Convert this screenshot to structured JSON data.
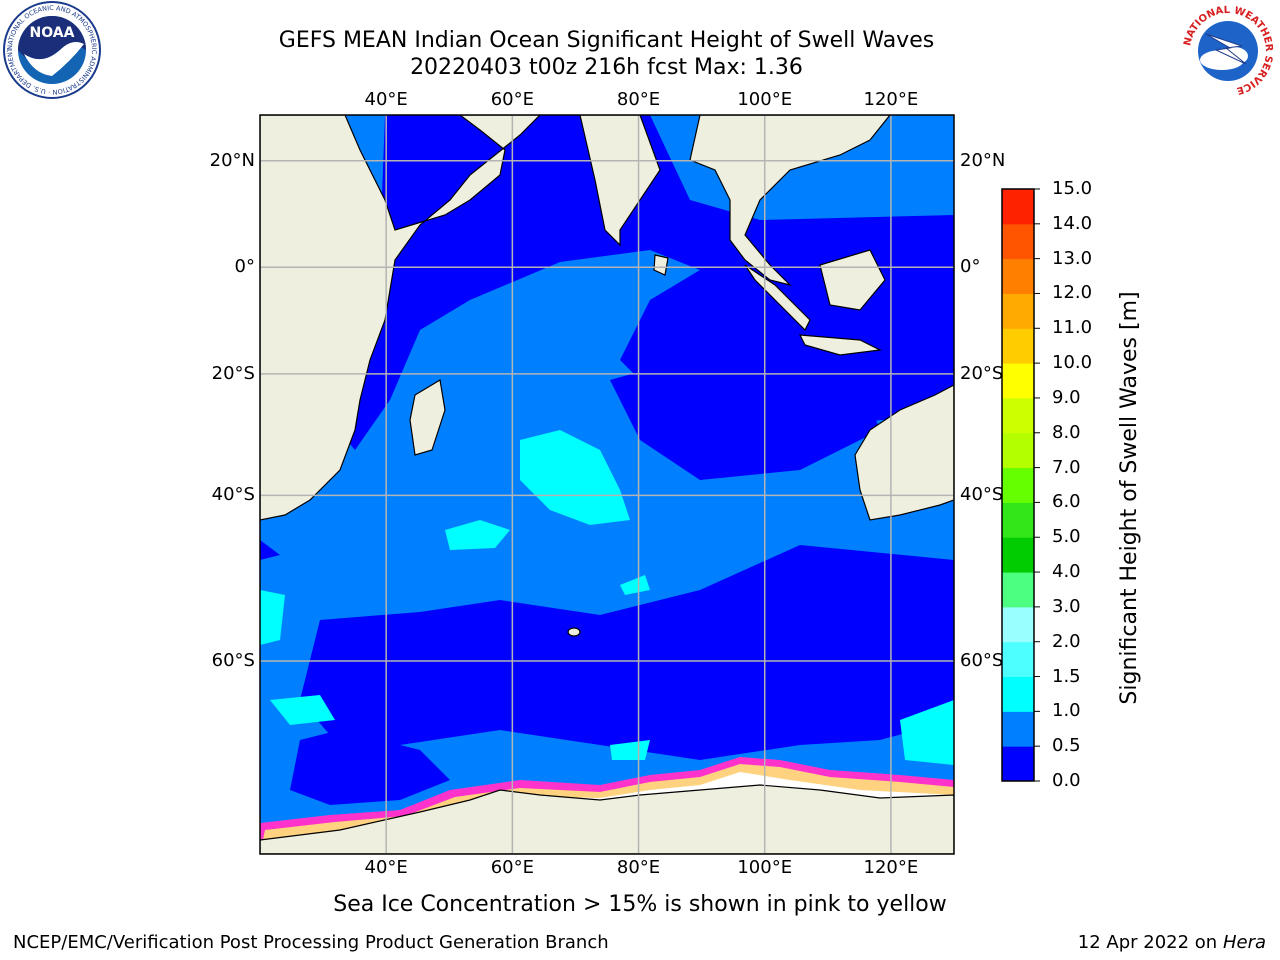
{
  "header": {
    "title_line1": "GEFS MEAN Indian Ocean Significant Height of Swell Waves",
    "title_line2": "20220403 t00z 216h fcst   Max: 1.36"
  },
  "logos": {
    "left": {
      "name": "noaa-logo",
      "text": "NOAA",
      "ring_text": "NATIONAL OCEANIC AND ATMOSPHERIC ADMINISTRATION · U.S. DEPARTMENT OF COMMERCE"
    },
    "right": {
      "name": "nws-logo",
      "ring_text": "NATIONAL WEATHER SERVICE"
    }
  },
  "map": {
    "lon_ticks": [
      "40°E",
      "60°E",
      "80°E",
      "100°E",
      "120°E"
    ],
    "lat_ticks": [
      "20°N",
      "0°",
      "20°S",
      "40°S",
      "60°S"
    ],
    "lon_values": [
      40,
      60,
      80,
      100,
      120
    ],
    "lat_values": [
      20,
      0,
      -20,
      -40,
      -60
    ],
    "lon_range": [
      20,
      130
    ],
    "lat_range": [
      -74,
      28
    ],
    "colors": {
      "land": "#efefdf",
      "coast": "#000000",
      "grid": "#b4b4b4",
      "ice_edge": "#ff33cc",
      "ice_inner": "#ffd27f"
    }
  },
  "colorbar": {
    "label": "Significant Height of Swell Waves [m]",
    "ticks": [
      "0.0",
      "0.5",
      "1.0",
      "1.5",
      "2.0",
      "3.0",
      "4.0",
      "5.0",
      "6.0",
      "7.0",
      "8.0",
      "9.0",
      "10.0",
      "11.0",
      "12.0",
      "13.0",
      "14.0",
      "15.0"
    ],
    "colors": [
      "#0000ff",
      "#0080ff",
      "#00ffff",
      "#4dffff",
      "#99ffff",
      "#4dff80",
      "#00cc00",
      "#33e61a",
      "#66ff00",
      "#b3ff00",
      "#ccff00",
      "#ffff00",
      "#ffcc00",
      "#ffaa00",
      "#ff8000",
      "#ff5500",
      "#ff2200",
      "#ff0000"
    ]
  },
  "footer": {
    "note": "Sea Ice Concentration > 15% is shown in pink to yellow",
    "left": "NCEP/EMC/Verification Post Processing Product Generation Branch",
    "right_prefix": "12 Apr 2022 on ",
    "right_host": "Hera"
  }
}
